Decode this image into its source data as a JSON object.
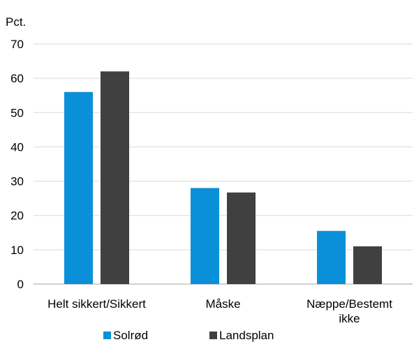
{
  "chart_data": {
    "type": "bar",
    "unit_label": "Pct.",
    "categories": [
      [
        "Helt sikkert/Sikkert"
      ],
      [
        "Måske"
      ],
      [
        "Næppe/Bestemt",
        "ikke"
      ]
    ],
    "series": [
      {
        "name": "Solrød",
        "values": [
          56,
          28,
          15.5
        ],
        "color": "#0a90d8"
      },
      {
        "name": "Landsplan",
        "values": [
          62,
          26.7,
          11
        ],
        "color": "#404040"
      }
    ],
    "ylim": [
      0,
      70
    ],
    "yticks": [
      0,
      10,
      20,
      30,
      40,
      50,
      60,
      70
    ],
    "grid": true,
    "legend_position": "bottom"
  }
}
